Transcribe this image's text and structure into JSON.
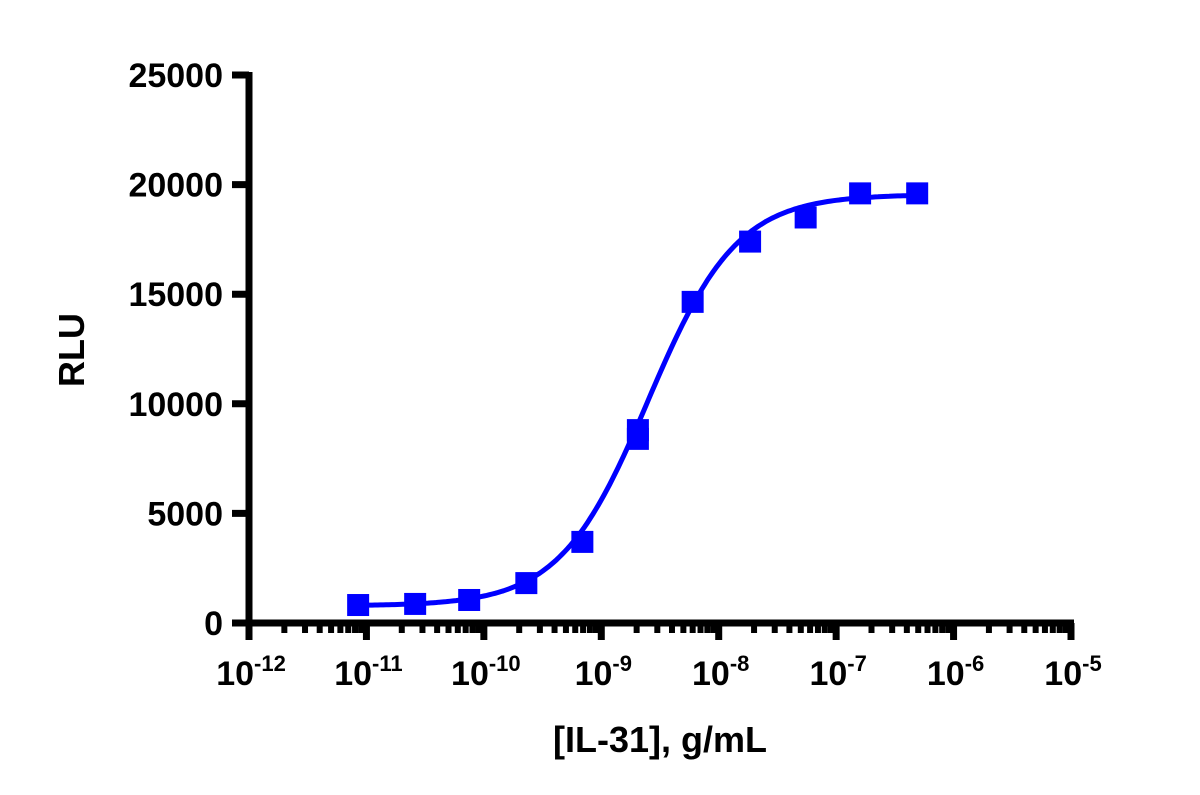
{
  "chart_data": {
    "type": "scatter",
    "title": "",
    "xlabel": "[IL-31], g/mL",
    "ylabel": "RLU",
    "xscale": "log",
    "xlim": [
      1e-12,
      1e-05
    ],
    "ylim": [
      0,
      25000
    ],
    "grid": false,
    "legend": null,
    "x_ticks": [
      "10-12",
      "10-11",
      "10-10",
      "10-9",
      "10-8",
      "10-7",
      "10-6",
      "10-5"
    ],
    "x_tick_labels": [
      {
        "base": "10",
        "exp": "-12"
      },
      {
        "base": "10",
        "exp": "-11"
      },
      {
        "base": "10",
        "exp": "-10"
      },
      {
        "base": "10",
        "exp": "-9"
      },
      {
        "base": "10",
        "exp": "-8"
      },
      {
        "base": "10",
        "exp": "-7"
      },
      {
        "base": "10",
        "exp": "-6"
      },
      {
        "base": "10",
        "exp": "-5"
      }
    ],
    "y_ticks": [
      "0",
      "5000",
      "10000",
      "15000",
      "20000",
      "25000"
    ],
    "series": [
      {
        "name": "IL-31",
        "color": "#0000FF",
        "marker": "square",
        "x": [
          8.5e-12,
          2.6e-11,
          7.5e-11,
          2.3e-10,
          6.9e-10,
          2.05e-09,
          2.05e-09,
          6e-09,
          1.85e-08,
          5.5e-08,
          1.6e-07,
          4.9e-07
        ],
        "y": [
          820,
          870,
          1050,
          1820,
          3700,
          8400,
          8800,
          14650,
          17400,
          18500,
          19600,
          19600
        ]
      }
    ],
    "fit": {
      "type": "4PL sigmoidal",
      "color": "#0000FF",
      "bottom": 780,
      "top": 19550,
      "log_ec50": -8.6,
      "hill_slope": 1.15
    }
  }
}
